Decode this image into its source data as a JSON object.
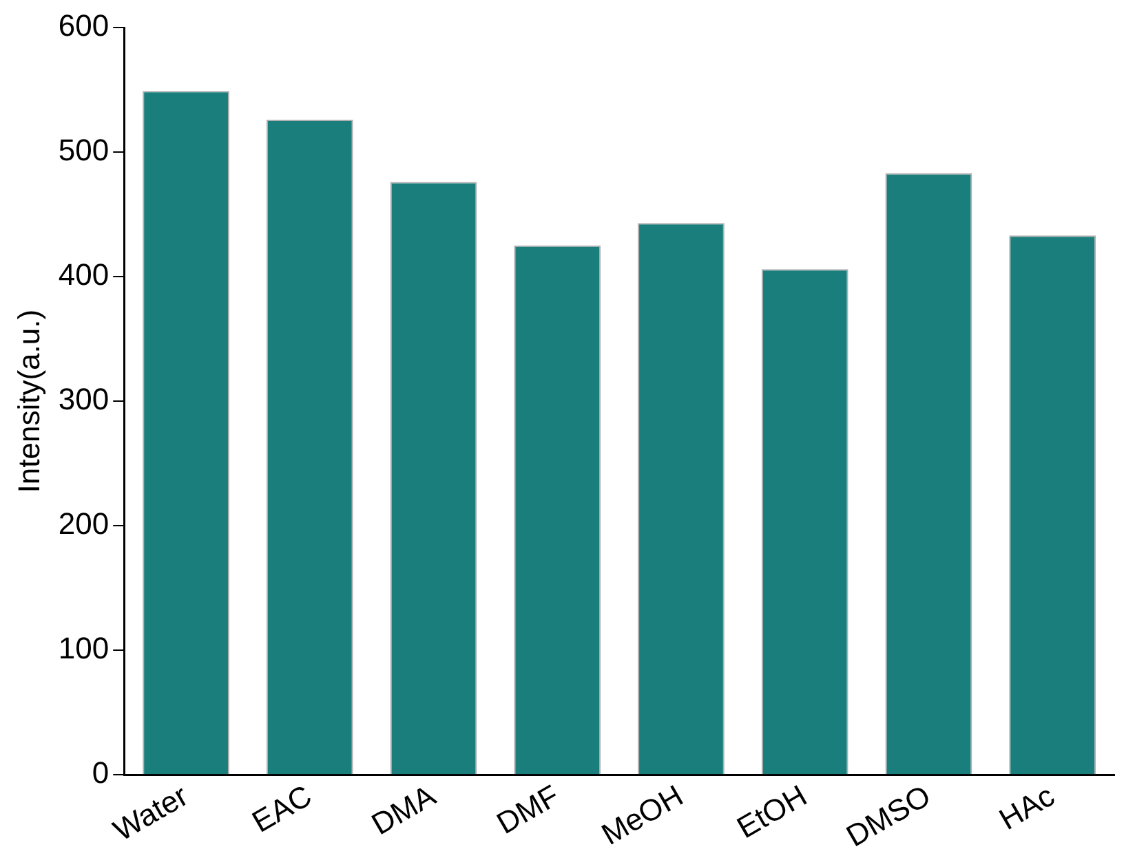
{
  "chart_data": {
    "type": "bar",
    "ylabel": "Intensity(a.u.)",
    "categories": [
      "Water",
      "EAC",
      "DMA",
      "DMF",
      "MeOH",
      "EtOH",
      "DMSO",
      "HAc"
    ],
    "values": [
      549,
      526,
      476,
      425,
      443,
      406,
      483,
      433
    ],
    "color": "#1a7f7c",
    "ylim": [
      0,
      600
    ],
    "yticks": [
      0,
      100,
      200,
      300,
      400,
      500,
      600
    ],
    "grid": false,
    "legend": false
  }
}
